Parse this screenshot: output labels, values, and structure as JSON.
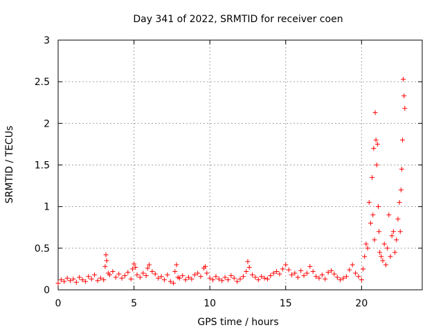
{
  "chart_data": {
    "type": "scatter",
    "title": "Day 341 of 2022, SRMTID for receiver coen",
    "xlabel": "GPS time / hours",
    "ylabel": "SRMTID / TECUs",
    "xlim": [
      0,
      24
    ],
    "ylim": [
      0,
      3
    ],
    "xticks": [
      0,
      5,
      10,
      15,
      20
    ],
    "xtick_labels": [
      "0",
      "5",
      "10",
      "15",
      "20"
    ],
    "yticks": [
      0,
      0.5,
      1,
      1.5,
      2,
      2.5,
      3
    ],
    "ytick_labels": [
      "0",
      "0.5",
      "1",
      "1.5",
      "2",
      "2.5",
      "3"
    ],
    "grid": true,
    "marker": "+",
    "color": "#ff0000",
    "series": [
      {
        "name": "SRMTID",
        "x": [
          0.0,
          0.2,
          0.4,
          0.6,
          0.8,
          1.0,
          1.2,
          1.4,
          1.6,
          1.8,
          2.0,
          2.2,
          2.4,
          2.6,
          2.8,
          3.0,
          3.1,
          3.15,
          3.2,
          3.3,
          3.4,
          3.6,
          3.8,
          4.0,
          4.2,
          4.4,
          4.6,
          4.8,
          4.9,
          5.0,
          5.1,
          5.2,
          5.4,
          5.6,
          5.8,
          5.9,
          6.0,
          6.2,
          6.4,
          6.6,
          6.8,
          7.0,
          7.2,
          7.4,
          7.6,
          7.7,
          7.8,
          7.9,
          8.0,
          8.2,
          8.4,
          8.6,
          8.8,
          9.0,
          9.2,
          9.4,
          9.6,
          9.7,
          9.8,
          10.0,
          10.2,
          10.4,
          10.6,
          10.8,
          11.0,
          11.2,
          11.4,
          11.6,
          11.8,
          12.0,
          12.2,
          12.4,
          12.5,
          12.6,
          12.8,
          13.0,
          13.2,
          13.4,
          13.6,
          13.8,
          14.0,
          14.2,
          14.4,
          14.6,
          14.8,
          15.0,
          15.2,
          15.4,
          15.6,
          15.8,
          16.0,
          16.2,
          16.4,
          16.6,
          16.8,
          17.0,
          17.2,
          17.4,
          17.6,
          17.8,
          18.0,
          18.2,
          18.4,
          18.6,
          18.8,
          19.0,
          19.2,
          19.4,
          19.6,
          19.8,
          20.0,
          20.1,
          20.2,
          20.3,
          20.4,
          20.5,
          20.6,
          20.7,
          20.75,
          20.8,
          20.85,
          20.9,
          20.95,
          21.0,
          21.05,
          21.1,
          21.15,
          21.2,
          21.3,
          21.4,
          21.5,
          21.6,
          21.7,
          21.8,
          21.9,
          22.0,
          22.1,
          22.2,
          22.3,
          22.4,
          22.5,
          22.55,
          22.6,
          22.65,
          22.7,
          22.75,
          22.8,
          22.85
        ],
        "y": [
          0.08,
          0.12,
          0.1,
          0.14,
          0.11,
          0.13,
          0.09,
          0.15,
          0.12,
          0.1,
          0.16,
          0.13,
          0.18,
          0.11,
          0.14,
          0.12,
          0.28,
          0.42,
          0.35,
          0.2,
          0.18,
          0.22,
          0.15,
          0.19,
          0.14,
          0.17,
          0.21,
          0.13,
          0.25,
          0.31,
          0.27,
          0.18,
          0.15,
          0.2,
          0.17,
          0.26,
          0.3,
          0.22,
          0.19,
          0.14,
          0.16,
          0.12,
          0.18,
          0.1,
          0.08,
          0.22,
          0.3,
          0.15,
          0.14,
          0.17,
          0.12,
          0.15,
          0.13,
          0.18,
          0.2,
          0.16,
          0.26,
          0.28,
          0.2,
          0.14,
          0.12,
          0.16,
          0.13,
          0.11,
          0.15,
          0.12,
          0.17,
          0.14,
          0.1,
          0.13,
          0.16,
          0.22,
          0.34,
          0.27,
          0.18,
          0.15,
          0.12,
          0.16,
          0.14,
          0.13,
          0.17,
          0.2,
          0.22,
          0.19,
          0.25,
          0.3,
          0.24,
          0.18,
          0.2,
          0.15,
          0.23,
          0.17,
          0.2,
          0.28,
          0.22,
          0.16,
          0.14,
          0.18,
          0.13,
          0.21,
          0.23,
          0.19,
          0.15,
          0.12,
          0.14,
          0.16,
          0.24,
          0.3,
          0.2,
          0.16,
          0.12,
          0.25,
          0.4,
          0.55,
          0.5,
          1.05,
          0.8,
          1.35,
          0.9,
          1.7,
          0.6,
          2.13,
          1.8,
          1.5,
          1.75,
          1.0,
          0.7,
          0.45,
          0.4,
          0.35,
          0.55,
          0.3,
          0.5,
          0.9,
          0.4,
          0.65,
          0.7,
          0.45,
          0.6,
          0.85,
          1.05,
          0.7,
          1.2,
          1.45,
          1.8,
          2.53,
          2.33,
          2.18
        ]
      }
    ]
  }
}
